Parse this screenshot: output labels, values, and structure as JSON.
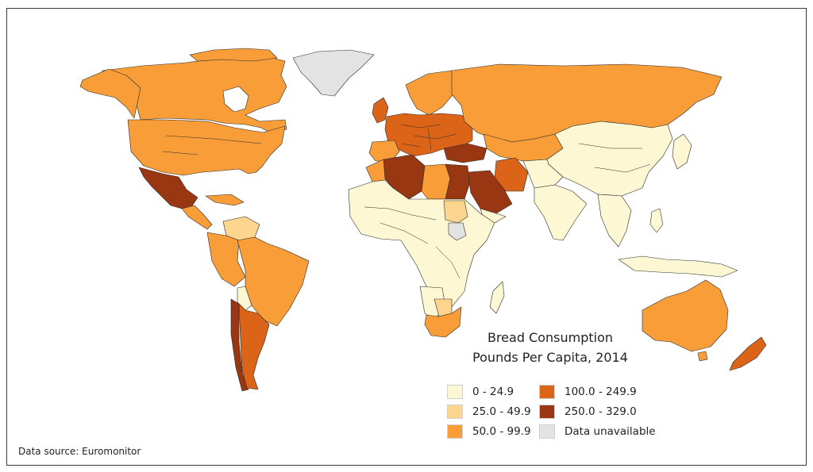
{
  "title_line1": "Bread Consumption",
  "title_line2": "Pounds Per Capita, 2014",
  "legend": [
    {
      "label": "0 - 24.9",
      "color": "#fdf8d3"
    },
    {
      "label": "25.0 - 49.9",
      "color": "#fdd58e"
    },
    {
      "label": "50.0 - 99.9",
      "color": "#f99d38"
    },
    {
      "label": "100.0 - 249.9",
      "color": "#db6419"
    },
    {
      "label": "250.0 - 329.0",
      "color": "#9a3713"
    },
    {
      "label": "Data unavailable",
      "color": "#e3e3e3"
    }
  ],
  "source": "Data source: Euromonitor",
  "regions": [
    {
      "name": "Canada",
      "category": "50.0 - 99.9"
    },
    {
      "name": "Alaska",
      "category": "50.0 - 99.9"
    },
    {
      "name": "United States",
      "category": "50.0 - 99.9"
    },
    {
      "name": "Greenland",
      "category": "Data unavailable"
    },
    {
      "name": "Mexico",
      "category": "250.0 - 329.0"
    },
    {
      "name": "Brazil",
      "category": "50.0 - 99.9"
    },
    {
      "name": "Argentina",
      "category": "100.0 - 249.9"
    },
    {
      "name": "Chile",
      "category": "250.0 - 329.0"
    },
    {
      "name": "Venezuela",
      "category": "25.0 - 49.9"
    },
    {
      "name": "Russia",
      "category": "50.0 - 99.9"
    },
    {
      "name": "Europe",
      "category": "100.0 - 249.9"
    },
    {
      "name": "Turkey",
      "category": "250.0 - 329.0"
    },
    {
      "name": "Algeria",
      "category": "250.0 - 329.0"
    },
    {
      "name": "Egypt",
      "category": "250.0 - 329.0"
    },
    {
      "name": "Saudi Arabia",
      "category": "250.0 - 329.0"
    },
    {
      "name": "Iran",
      "category": "100.0 - 249.9"
    },
    {
      "name": "Sudan",
      "category": "25.0 - 49.9"
    },
    {
      "name": "South Sudan",
      "category": "Data unavailable"
    },
    {
      "name": "China",
      "category": "0 - 24.9"
    },
    {
      "name": "India",
      "category": "0 - 24.9"
    },
    {
      "name": "Sub-Saharan Africa",
      "category": "0 - 24.9"
    },
    {
      "name": "South Africa",
      "category": "50.0 - 99.9"
    },
    {
      "name": "Australia",
      "category": "50.0 - 99.9"
    },
    {
      "name": "New Zealand",
      "category": "100.0 - 249.9"
    }
  ]
}
